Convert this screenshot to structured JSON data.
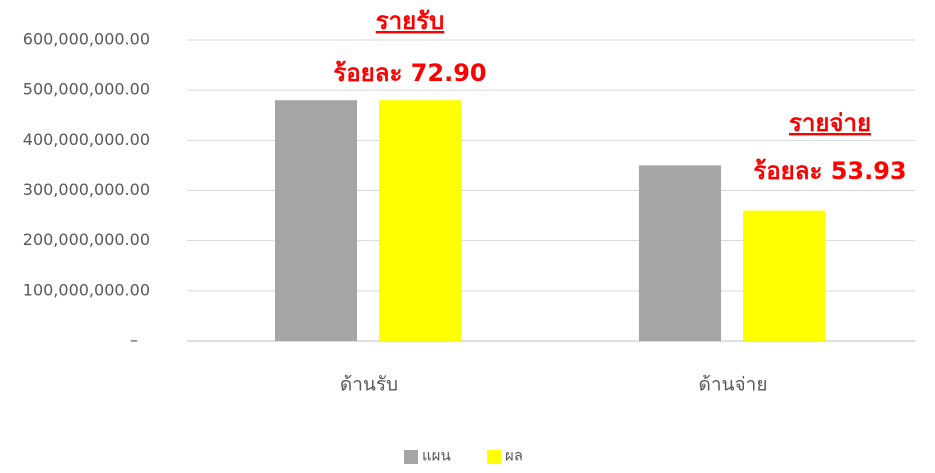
{
  "chart_data": {
    "type": "bar",
    "categories": [
      "ด้านรับ",
      "ด้านจ่าย"
    ],
    "series": [
      {
        "name": "แผน",
        "color": "#a5a5a5",
        "values": [
          480000000,
          350000000
        ]
      },
      {
        "name": "ผล",
        "color": "#ffff00",
        "values": [
          480000000,
          260000000
        ]
      }
    ],
    "ylim": [
      0,
      600000000
    ],
    "yticks": [
      {
        "value": 0,
        "label": "–"
      },
      {
        "value": 100000000,
        "label": "100,000,000.00"
      },
      {
        "value": 200000000,
        "label": "200,000,000.00"
      },
      {
        "value": 300000000,
        "label": "300,000,000.00"
      },
      {
        "value": 400000000,
        "label": "400,000,000.00"
      },
      {
        "value": 500000000,
        "label": "500,000,000.00"
      },
      {
        "value": 600000000,
        "label": "600,000,000.00"
      }
    ],
    "grid": true,
    "legend": "bottom",
    "annotations": [
      "รายรับ",
      "ร้อยละ 72.90",
      "รายจ่าย",
      "ร้อยละ 53.93"
    ]
  }
}
